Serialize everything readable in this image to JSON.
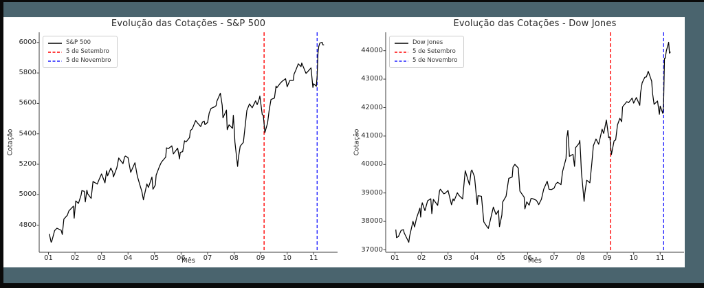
{
  "frame": {
    "outer_border_color": "#000000",
    "frame_color": "#4a646e",
    "figure_background": "#ffffff"
  },
  "chart_data": [
    {
      "type": "line",
      "title": "Evolução das Cotações - S&P 500",
      "xlabel": "Mês",
      "ylabel": "Cotação",
      "grid": false,
      "legend_position": "upper-left",
      "xlim": [
        0.65,
        11.9
      ],
      "ylim": [
        4622,
        6067
      ],
      "x_tick_values": [
        1,
        2,
        3,
        4,
        5,
        6,
        7,
        8,
        9,
        10,
        11
      ],
      "x_tick_labels": [
        "01",
        "02",
        "03",
        "04",
        "05",
        "06",
        "07",
        "08",
        "09",
        "10",
        "11"
      ],
      "y_ticks": [
        4800,
        5000,
        5200,
        5400,
        5600,
        5800,
        6000
      ],
      "legend": [
        {
          "label": "S&P 500",
          "color": "#000000",
          "style": "solid"
        },
        {
          "label": "5 de Setembro",
          "color": "#ff0000",
          "style": "dashed"
        },
        {
          "label": "5 de Novembro",
          "color": "#2222ff",
          "style": "dashed"
        }
      ],
      "vlines": [
        {
          "x": 9.13,
          "color": "#ff0000",
          "label": "5 de Setembro"
        },
        {
          "x": 11.13,
          "color": "#2222ff",
          "label": "5 de Novembro"
        }
      ],
      "series": {
        "name": "S&P 500",
        "color": "#000000",
        "points": [
          [
            1.03,
            4743
          ],
          [
            1.1,
            4688
          ],
          [
            1.13,
            4697
          ],
          [
            1.23,
            4764
          ],
          [
            1.32,
            4780
          ],
          [
            1.48,
            4766
          ],
          [
            1.52,
            4739
          ],
          [
            1.58,
            4840
          ],
          [
            1.71,
            4865
          ],
          [
            1.77,
            4894
          ],
          [
            1.94,
            4925
          ],
          [
            1.97,
            4846
          ],
          [
            2.0,
            4906
          ],
          [
            2.03,
            4959
          ],
          [
            2.13,
            4943
          ],
          [
            2.23,
            4998
          ],
          [
            2.26,
            5027
          ],
          [
            2.35,
            5022
          ],
          [
            2.39,
            4953
          ],
          [
            2.45,
            5030
          ],
          [
            2.48,
            5006
          ],
          [
            2.61,
            4976
          ],
          [
            2.68,
            5087
          ],
          [
            2.84,
            5070
          ],
          [
            2.9,
            5096
          ],
          [
            3.0,
            5137
          ],
          [
            3.13,
            5078
          ],
          [
            3.19,
            5157
          ],
          [
            3.23,
            5124
          ],
          [
            3.35,
            5175
          ],
          [
            3.42,
            5150
          ],
          [
            3.45,
            5117
          ],
          [
            3.58,
            5178
          ],
          [
            3.65,
            5241
          ],
          [
            3.81,
            5204
          ],
          [
            3.87,
            5248
          ],
          [
            3.9,
            5254
          ],
          [
            4.0,
            5244
          ],
          [
            4.1,
            5147
          ],
          [
            4.26,
            5210
          ],
          [
            4.35,
            5123
          ],
          [
            4.45,
            5062
          ],
          [
            4.52,
            5022
          ],
          [
            4.58,
            4967
          ],
          [
            4.71,
            5071
          ],
          [
            4.77,
            5048
          ],
          [
            4.9,
            5116
          ],
          [
            4.94,
            5036
          ],
          [
            5.03,
            5064
          ],
          [
            5.06,
            5128
          ],
          [
            5.19,
            5188
          ],
          [
            5.26,
            5214
          ],
          [
            5.42,
            5247
          ],
          [
            5.45,
            5308
          ],
          [
            5.52,
            5303
          ],
          [
            5.65,
            5321
          ],
          [
            5.71,
            5268
          ],
          [
            5.87,
            5306
          ],
          [
            5.94,
            5235
          ],
          [
            5.97,
            5278
          ],
          [
            6.06,
            5283
          ],
          [
            6.13,
            5354
          ],
          [
            6.19,
            5347
          ],
          [
            6.32,
            5375
          ],
          [
            6.35,
            5421
          ],
          [
            6.42,
            5432
          ],
          [
            6.55,
            5487
          ],
          [
            6.61,
            5473
          ],
          [
            6.74,
            5448
          ],
          [
            6.81,
            5478
          ],
          [
            6.87,
            5483
          ],
          [
            6.9,
            5460
          ],
          [
            7.0,
            5475
          ],
          [
            7.06,
            5537
          ],
          [
            7.13,
            5567
          ],
          [
            7.26,
            5577
          ],
          [
            7.32,
            5585
          ],
          [
            7.35,
            5615
          ],
          [
            7.48,
            5667
          ],
          [
            7.55,
            5588
          ],
          [
            7.58,
            5505
          ],
          [
            7.71,
            5556
          ],
          [
            7.74,
            5427
          ],
          [
            7.81,
            5459
          ],
          [
            7.94,
            5436
          ],
          [
            7.97,
            5522
          ],
          [
            8.0,
            5446
          ],
          [
            8.03,
            5346
          ],
          [
            8.13,
            5186
          ],
          [
            8.16,
            5240
          ],
          [
            8.23,
            5319
          ],
          [
            8.35,
            5344
          ],
          [
            8.42,
            5455
          ],
          [
            8.48,
            5554
          ],
          [
            8.58,
            5597
          ],
          [
            8.68,
            5571
          ],
          [
            8.81,
            5617
          ],
          [
            8.87,
            5592
          ],
          [
            8.94,
            5626
          ],
          [
            8.97,
            5648
          ],
          [
            9.06,
            5528
          ],
          [
            9.1,
            5520
          ],
          [
            9.16,
            5408
          ],
          [
            9.26,
            5471
          ],
          [
            9.32,
            5554
          ],
          [
            9.39,
            5626
          ],
          [
            9.52,
            5635
          ],
          [
            9.58,
            5714
          ],
          [
            9.61,
            5703
          ],
          [
            9.74,
            5733
          ],
          [
            9.81,
            5745
          ],
          [
            9.94,
            5762
          ],
          [
            10.0,
            5709
          ],
          [
            10.1,
            5751
          ],
          [
            10.23,
            5751
          ],
          [
            10.26,
            5792
          ],
          [
            10.32,
            5815
          ],
          [
            10.42,
            5860
          ],
          [
            10.52,
            5841
          ],
          [
            10.55,
            5865
          ],
          [
            10.71,
            5797
          ],
          [
            10.77,
            5808
          ],
          [
            10.9,
            5833
          ],
          [
            10.97,
            5705
          ],
          [
            11.0,
            5729
          ],
          [
            11.1,
            5713
          ],
          [
            11.13,
            5783
          ],
          [
            11.16,
            5929
          ],
          [
            11.19,
            5973
          ],
          [
            11.23,
            5996
          ],
          [
            11.32,
            6001
          ],
          [
            11.35,
            5984
          ],
          [
            11.39,
            5985
          ]
        ]
      }
    },
    {
      "type": "line",
      "title": "Evolução das Cotações - Dow Jones",
      "xlabel": "Mês",
      "ylabel": "Cotação",
      "grid": false,
      "legend_position": "upper-left",
      "xlim": [
        0.65,
        11.9
      ],
      "ylim": [
        36916,
        44645
      ],
      "x_tick_values": [
        1,
        2,
        3,
        4,
        5,
        6,
        7,
        8,
        9,
        10,
        11
      ],
      "x_tick_labels": [
        "01",
        "02",
        "03",
        "04",
        "05",
        "06",
        "07",
        "08",
        "09",
        "10",
        "11"
      ],
      "y_ticks": [
        37000,
        38000,
        39000,
        40000,
        41000,
        42000,
        43000,
        44000
      ],
      "legend": [
        {
          "label": "Dow Jones",
          "color": "#000000",
          "style": "solid"
        },
        {
          "label": "5 de Setembro",
          "color": "#ff0000",
          "style": "dashed"
        },
        {
          "label": "5 de Novembro",
          "color": "#2222ff",
          "style": "dashed"
        }
      ],
      "vlines": [
        {
          "x": 9.13,
          "color": "#ff0000",
          "label": "5 de Setembro"
        },
        {
          "x": 11.13,
          "color": "#2222ff",
          "label": "5 de Novembro"
        }
      ],
      "series": {
        "name": "Dow Jones",
        "color": "#000000",
        "points": [
          [
            1.03,
            37715
          ],
          [
            1.06,
            37430
          ],
          [
            1.13,
            37466
          ],
          [
            1.23,
            37683
          ],
          [
            1.32,
            37711
          ],
          [
            1.35,
            37593
          ],
          [
            1.52,
            37267
          ],
          [
            1.55,
            37468
          ],
          [
            1.68,
            38002
          ],
          [
            1.74,
            37806
          ],
          [
            1.81,
            38109
          ],
          [
            1.94,
            38467
          ],
          [
            1.97,
            38150
          ],
          [
            2.0,
            38520
          ],
          [
            2.03,
            38654
          ],
          [
            2.13,
            38380
          ],
          [
            2.23,
            38726
          ],
          [
            2.35,
            38797
          ],
          [
            2.39,
            38273
          ],
          [
            2.45,
            38773
          ],
          [
            2.61,
            38564
          ],
          [
            2.68,
            39069
          ],
          [
            2.71,
            39132
          ],
          [
            2.84,
            38972
          ],
          [
            2.9,
            38996
          ],
          [
            3.0,
            39087
          ],
          [
            3.13,
            38585
          ],
          [
            3.19,
            38791
          ],
          [
            3.23,
            38723
          ],
          [
            3.35,
            39005
          ],
          [
            3.42,
            38906
          ],
          [
            3.55,
            38790
          ],
          [
            3.65,
            39781
          ],
          [
            3.81,
            39282
          ],
          [
            3.87,
            39760
          ],
          [
            3.9,
            39807
          ],
          [
            4.0,
            39567
          ],
          [
            4.1,
            38597
          ],
          [
            4.13,
            38904
          ],
          [
            4.26,
            38884
          ],
          [
            4.35,
            37983
          ],
          [
            4.48,
            37799
          ],
          [
            4.52,
            37753
          ],
          [
            4.58,
            37986
          ],
          [
            4.71,
            38503
          ],
          [
            4.81,
            38240
          ],
          [
            4.9,
            38386
          ],
          [
            4.94,
            37816
          ],
          [
            5.03,
            38226
          ],
          [
            5.06,
            38676
          ],
          [
            5.19,
            38884
          ],
          [
            5.29,
            39513
          ],
          [
            5.42,
            39558
          ],
          [
            5.45,
            39908
          ],
          [
            5.52,
            40004
          ],
          [
            5.65,
            39873
          ],
          [
            5.71,
            39065
          ],
          [
            5.87,
            38853
          ],
          [
            5.9,
            38441
          ],
          [
            5.97,
            38686
          ],
          [
            6.06,
            38571
          ],
          [
            6.13,
            38807
          ],
          [
            6.19,
            38799
          ],
          [
            6.32,
            38747
          ],
          [
            6.35,
            38712
          ],
          [
            6.42,
            38589
          ],
          [
            6.52,
            38778
          ],
          [
            6.61,
            39135
          ],
          [
            6.74,
            39411
          ],
          [
            6.81,
            39128
          ],
          [
            6.9,
            39119
          ],
          [
            7.0,
            39170
          ],
          [
            7.06,
            39308
          ],
          [
            7.13,
            39376
          ],
          [
            7.26,
            39292
          ],
          [
            7.32,
            39754
          ],
          [
            7.45,
            40211
          ],
          [
            7.48,
            40954
          ],
          [
            7.52,
            41198
          ],
          [
            7.58,
            40288
          ],
          [
            7.71,
            40358
          ],
          [
            7.77,
            39935
          ],
          [
            7.81,
            40589
          ],
          [
            7.94,
            40743
          ],
          [
            7.97,
            40843
          ],
          [
            8.0,
            40348
          ],
          [
            8.03,
            39737
          ],
          [
            8.13,
            38703
          ],
          [
            8.16,
            38997
          ],
          [
            8.23,
            39446
          ],
          [
            8.35,
            39357
          ],
          [
            8.42,
            40008
          ],
          [
            8.48,
            40660
          ],
          [
            8.58,
            40897
          ],
          [
            8.68,
            40713
          ],
          [
            8.81,
            41240
          ],
          [
            8.87,
            41091
          ],
          [
            8.97,
            41563
          ],
          [
            9.06,
            40937
          ],
          [
            9.1,
            40975
          ],
          [
            9.16,
            40345
          ],
          [
            9.26,
            40830
          ],
          [
            9.32,
            40862
          ],
          [
            9.39,
            41394
          ],
          [
            9.48,
            41622
          ],
          [
            9.55,
            41503
          ],
          [
            9.58,
            42025
          ],
          [
            9.74,
            42208
          ],
          [
            9.81,
            42175
          ],
          [
            9.94,
            42330
          ],
          [
            10.0,
            42157
          ],
          [
            10.1,
            42353
          ],
          [
            10.23,
            42080
          ],
          [
            10.26,
            42512
          ],
          [
            10.32,
            42864
          ],
          [
            10.42,
            43065
          ],
          [
            10.48,
            43077
          ],
          [
            10.55,
            43276
          ],
          [
            10.68,
            42925
          ],
          [
            10.71,
            42515
          ],
          [
            10.77,
            42114
          ],
          [
            10.9,
            42233
          ],
          [
            10.97,
            41763
          ],
          [
            11.0,
            42052
          ],
          [
            11.1,
            41795
          ],
          [
            11.13,
            42222
          ],
          [
            11.16,
            43730
          ],
          [
            11.19,
            43729
          ],
          [
            11.23,
            43989
          ],
          [
            11.32,
            44294
          ],
          [
            11.35,
            43911
          ],
          [
            11.39,
            43958
          ]
        ]
      }
    }
  ]
}
